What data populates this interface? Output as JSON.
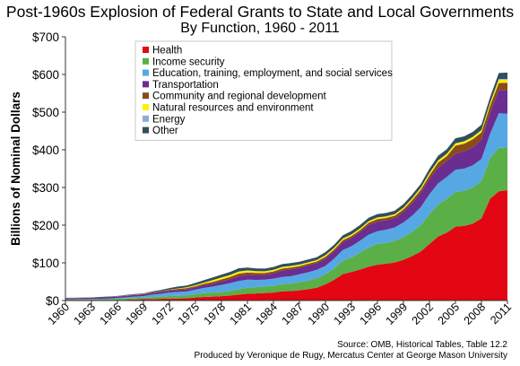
{
  "title": "Post-1960s Explosion of Federal Grants to State and Local Governments",
  "subtitle": "By Function, 1960 - 2011",
  "source_line": "Source: OMB, Historical Tables, Table 12.2",
  "credit_line": "Produced by Veronique de Rugy, Mercatus Center at George Mason University",
  "chart_data": {
    "type": "area",
    "stacked": true,
    "ylabel": "Billions of Nominal Dollars",
    "xlabel": "",
    "ylim": [
      0,
      700
    ],
    "xlim": [
      1960,
      2011
    ],
    "yticks": [
      0,
      100,
      200,
      300,
      400,
      500,
      600,
      700
    ],
    "ytick_labels": [
      "$0",
      "$100",
      "$200",
      "$300",
      "$400",
      "$500",
      "$600",
      "$700"
    ],
    "xticks": [
      1960,
      1963,
      1966,
      1969,
      1972,
      1975,
      1978,
      1981,
      1984,
      1987,
      1990,
      1993,
      1996,
      1999,
      2002,
      2005,
      2008,
      2011
    ],
    "legend_position": "top-left",
    "grid": false,
    "x": [
      1960,
      1961,
      1962,
      1963,
      1964,
      1965,
      1966,
      1967,
      1968,
      1969,
      1970,
      1971,
      1972,
      1973,
      1974,
      1975,
      1976,
      1977,
      1978,
      1979,
      1980,
      1981,
      1982,
      1983,
      1984,
      1985,
      1986,
      1987,
      1988,
      1989,
      1990,
      1991,
      1992,
      1993,
      1994,
      1995,
      1996,
      1997,
      1998,
      1999,
      2000,
      2001,
      2002,
      2003,
      2004,
      2005,
      2006,
      2007,
      2008,
      2009,
      2010,
      2011
    ],
    "series": [
      {
        "name": "Health",
        "color": "#e30613",
        "values": [
          0.2,
          0.2,
          0.3,
          0.3,
          0.4,
          0.6,
          1.0,
          2.0,
          3.0,
          3.5,
          3.8,
          4.5,
          5.5,
          5.5,
          6.0,
          8.0,
          9.5,
          10.5,
          11.5,
          13.0,
          15.8,
          18.0,
          18.8,
          20.0,
          21.0,
          24.5,
          25.0,
          27.0,
          30.0,
          34.0,
          43.0,
          55.0,
          70.0,
          76.0,
          82.0,
          90.0,
          95.0,
          98.0,
          101.0,
          108.0,
          118.0,
          130.0,
          150.0,
          170.0,
          180.0,
          196.0,
          198.0,
          204.0,
          218.0,
          270.0,
          290.0,
          293.0
        ]
      },
      {
        "name": "Income security",
        "color": "#5ab046",
        "values": [
          2.6,
          2.8,
          3.0,
          3.1,
          3.2,
          3.3,
          3.4,
          3.5,
          3.8,
          4.0,
          5.2,
          6.0,
          6.5,
          7.0,
          8.0,
          9.0,
          10.0,
          10.5,
          11.0,
          12.0,
          14.0,
          16.0,
          16.5,
          17.0,
          18.0,
          19.0,
          20.0,
          21.5,
          23.0,
          24.5,
          27.0,
          30.0,
          36.0,
          38.0,
          45.0,
          51.0,
          55.0,
          55.0,
          57.0,
          60.0,
          64.0,
          71.0,
          79.0,
          85.0,
          90.0,
          92.0,
          93.0,
          96.0,
          99.0,
          108.0,
          115.0,
          113.0
        ]
      },
      {
        "name": "Education, training, employment, and social services",
        "color": "#56a8e5",
        "values": [
          0.5,
          0.6,
          0.7,
          0.8,
          1.0,
          1.3,
          2.0,
          3.0,
          3.5,
          4.0,
          6.5,
          7.5,
          9.0,
          10.0,
          10.0,
          12.0,
          14.0,
          16.0,
          19.0,
          21.0,
          22.0,
          21.5,
          19.5,
          18.5,
          19.0,
          19.0,
          19.5,
          21.0,
          22.0,
          23.0,
          22.0,
          26.0,
          28.0,
          30.0,
          32.0,
          34.0,
          34.0,
          35.0,
          36.0,
          39.0,
          43.0,
          47.0,
          53.0,
          56.0,
          58.0,
          59.0,
          59.0,
          59.0,
          59.0,
          65.0,
          92.0,
          90.0
        ]
      },
      {
        "name": "Transportation",
        "color": "#6a2d91",
        "values": [
          3.0,
          3.0,
          3.0,
          3.1,
          3.6,
          4.0,
          4.1,
          4.1,
          4.2,
          4.3,
          4.5,
          4.9,
          5.0,
          5.5,
          5.5,
          6.0,
          7.5,
          8.0,
          9.5,
          10.5,
          13.0,
          13.5,
          13.0,
          12.8,
          14.0,
          17.0,
          18.0,
          17.5,
          18.0,
          18.0,
          19.0,
          20.0,
          21.0,
          22.0,
          23.0,
          25.0,
          25.0,
          25.0,
          24.5,
          28.0,
          33.0,
          38.0,
          41.0,
          41.0,
          42.0,
          43.0,
          46.0,
          47.0,
          51.0,
          56.0,
          61.0,
          62.0
        ]
      },
      {
        "name": "Community and regional development",
        "color": "#8a4a1a",
        "values": [
          0.1,
          0.1,
          0.2,
          0.3,
          0.4,
          0.5,
          0.6,
          0.8,
          1.0,
          1.2,
          1.7,
          2.0,
          2.5,
          3.0,
          3.5,
          3.2,
          3.5,
          4.5,
          5.0,
          6.0,
          6.5,
          5.5,
          5.5,
          5.0,
          5.0,
          5.2,
          5.0,
          4.5,
          4.5,
          4.0,
          5.0,
          4.5,
          5.0,
          5.0,
          5.0,
          6.5,
          7.0,
          6.0,
          6.5,
          7.0,
          8.0,
          8.0,
          9.0,
          14.0,
          13.0,
          21.0,
          20.0,
          22.0,
          19.0,
          18.0,
          19.0,
          20.0
        ]
      },
      {
        "name": "Natural resources and environment",
        "color": "#ffef00",
        "values": [
          0.1,
          0.1,
          0.1,
          0.1,
          0.1,
          0.1,
          0.1,
          0.2,
          0.2,
          0.3,
          0.4,
          0.5,
          0.6,
          1.2,
          2.0,
          2.5,
          3.0,
          4.5,
          5.0,
          5.0,
          5.4,
          5.0,
          4.4,
          4.0,
          4.0,
          4.0,
          4.0,
          3.5,
          3.5,
          3.5,
          4.0,
          4.0,
          4.0,
          4.0,
          4.0,
          4.0,
          4.0,
          4.0,
          4.0,
          4.0,
          4.5,
          5.0,
          6.0,
          5.5,
          6.0,
          6.0,
          6.0,
          6.0,
          6.0,
          7.0,
          9.0,
          8.0
        ]
      },
      {
        "name": "Energy",
        "color": "#8faad8",
        "values": [
          0,
          0,
          0,
          0,
          0,
          0,
          0,
          0,
          0,
          0,
          0,
          0,
          0,
          0,
          0,
          0,
          0.1,
          0.2,
          0.3,
          0.4,
          0.5,
          0.5,
          0.4,
          0.4,
          0.5,
          0.5,
          0.5,
          0.4,
          0.4,
          0.4,
          0.5,
          0.5,
          0.5,
          0.5,
          0.5,
          0.5,
          0.5,
          0.5,
          0.5,
          0.5,
          0.5,
          0.6,
          0.6,
          0.6,
          0.6,
          0.6,
          0.6,
          0.6,
          0.6,
          1.0,
          2.0,
          2.0
        ]
      },
      {
        "name": "Other",
        "color": "#2f4f5c",
        "values": [
          0.5,
          0.6,
          0.7,
          0.7,
          0.8,
          0.9,
          1.0,
          1.2,
          1.5,
          1.5,
          2.0,
          2.5,
          4.0,
          5.0,
          5.0,
          6.0,
          6.5,
          7.0,
          7.5,
          8.0,
          8.5,
          7.5,
          7.0,
          7.0,
          7.5,
          7.5,
          7.5,
          7.5,
          7.5,
          7.5,
          8.0,
          8.0,
          8.5,
          9.0,
          9.0,
          9.0,
          9.0,
          9.0,
          9.0,
          9.5,
          10.0,
          10.0,
          11.0,
          12.0,
          12.0,
          13.0,
          13.0,
          13.0,
          14.0,
          15.0,
          16.0,
          17.0
        ]
      }
    ]
  }
}
